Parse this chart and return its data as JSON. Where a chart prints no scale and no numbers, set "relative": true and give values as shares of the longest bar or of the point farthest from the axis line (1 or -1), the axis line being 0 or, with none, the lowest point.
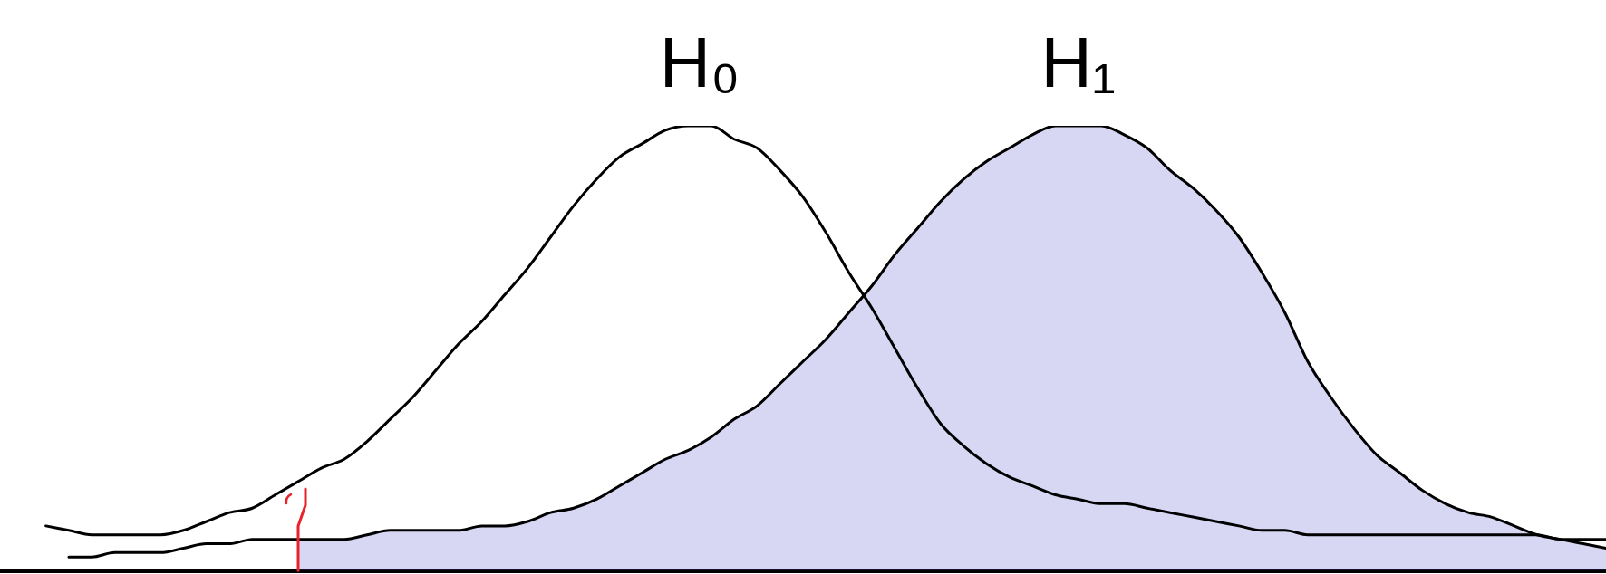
{
  "chart_data": {
    "type": "line",
    "relative": true,
    "marker": "none",
    "line_style": "solid",
    "tick_labels": false,
    "categories": [
      null,
      null,
      null,
      null,
      null,
      null,
      null,
      null,
      null,
      null,
      null,
      null,
      null,
      null,
      null,
      null,
      null,
      null,
      null,
      null,
      null,
      null,
      null,
      null,
      null,
      null,
      null,
      null,
      null,
      null,
      null,
      null,
      null,
      null,
      null,
      null,
      null,
      null,
      null,
      null,
      null,
      null,
      null,
      null,
      null,
      null,
      null,
      null,
      null,
      null,
      null,
      null,
      null,
      null,
      null,
      null,
      null,
      null,
      null,
      null,
      null,
      null,
      null,
      null,
      null,
      null,
      null,
      null,
      null,
      null,
      null
    ],
    "series": [
      {
        "name": "H₀",
        "color": "#000000",
        "values": [
          null,
          null,
          0.1,
          0.09,
          0.08,
          0.08,
          0.08,
          0.08,
          0.09,
          0.11,
          0.13,
          0.14,
          0.17,
          0.2,
          0.23,
          0.25,
          0.29,
          0.34,
          0.39,
          0.45,
          0.51,
          0.56,
          0.62,
          0.68,
          0.75,
          0.82,
          0.88,
          0.93,
          0.96,
          0.99,
          1,
          1,
          0.97,
          0.95,
          0.9,
          0.84,
          0.76,
          0.67,
          0.59,
          0.5,
          0.41,
          0.33,
          0.28,
          0.24,
          0.21,
          0.19,
          0.17,
          0.16,
          0.15,
          0.15,
          0.14,
          0.13,
          0.12,
          0.11,
          0.1,
          0.09,
          0.09,
          0.08,
          0.08,
          0.08,
          0.08,
          0.08,
          0.08,
          0.08,
          0.08,
          0.08,
          0.08,
          0.08,
          0.07,
          0.07,
          0.07
        ]
      },
      {
        "name": "H₁",
        "color": "#000000",
        "values": [
          null,
          null,
          null,
          0.03,
          0.03,
          0.04,
          0.04,
          0.04,
          0.05,
          0.06,
          0.06,
          0.07,
          0.07,
          0.07,
          0.07,
          0.07,
          0.08,
          0.09,
          0.09,
          0.09,
          0.09,
          0.1,
          0.1,
          0.11,
          0.13,
          0.14,
          0.16,
          0.19,
          0.22,
          0.25,
          0.27,
          0.3,
          0.34,
          0.37,
          0.42,
          0.47,
          0.52,
          0.58,
          0.64,
          0.71,
          0.77,
          0.83,
          0.88,
          0.92,
          0.95,
          0.98,
          1,
          1,
          1,
          0.98,
          0.95,
          0.9,
          0.86,
          0.81,
          0.75,
          0.67,
          0.58,
          0.47,
          0.39,
          0.32,
          0.26,
          0.22,
          0.18,
          0.15,
          0.13,
          0.12,
          0.1,
          0.08,
          0.07,
          0.06,
          0.05
        ]
      },
      {
        "type": "area",
        "color": "#4b4bcb",
        "values": [
          null,
          null,
          null,
          null,
          null,
          null,
          null,
          null,
          null,
          null,
          null,
          null,
          null,
          0.07,
          0.07,
          0.07,
          0.08,
          0.09,
          0.09,
          0.09,
          0.09,
          0.1,
          0.1,
          0.11,
          0.13,
          0.14,
          0.16,
          0.19,
          0.22,
          0.25,
          0.27,
          0.3,
          0.34,
          0.37,
          0.42,
          0.47,
          0.52,
          0.58,
          0.64,
          0.71,
          0.77,
          0.83,
          0.88,
          0.92,
          0.95,
          0.98,
          1,
          1,
          1,
          0.98,
          0.95,
          0.9,
          0.86,
          0.81,
          0.75,
          0.67,
          0.58,
          0.47,
          0.39,
          0.32,
          0.26,
          0.22,
          0.18,
          0.15,
          0.13,
          0.12,
          0.1,
          0.08,
          0.07,
          0.06,
          0.05
        ]
      }
    ]
  }
}
